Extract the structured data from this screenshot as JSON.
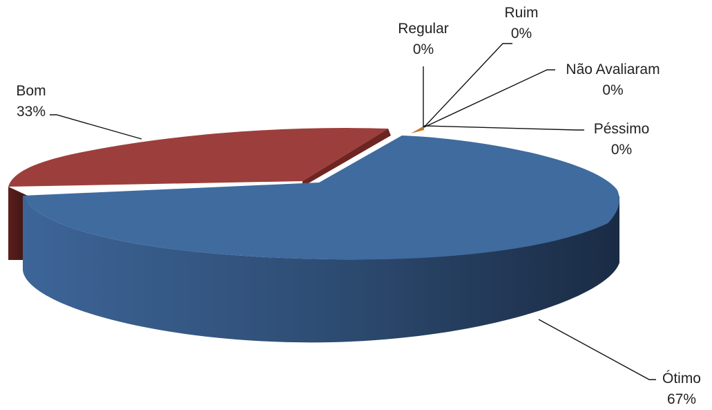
{
  "chart_data": {
    "type": "pie",
    "three_d": true,
    "legend": "none",
    "slices": [
      {
        "label": "Ótimo",
        "value_label": "67%",
        "value": 67,
        "color": "#3f6b9f"
      },
      {
        "label": "Bom",
        "value_label": "33%",
        "value": 33,
        "color": "#9c3f3c"
      },
      {
        "label": "Regular",
        "value_label": "0%",
        "value": 0,
        "color": "#c0782f"
      },
      {
        "label": "Ruim",
        "value_label": "0%",
        "value": 0,
        "color": "#8a9a3a"
      },
      {
        "label": "Não Avaliaram",
        "value_label": "0%",
        "value": 0,
        "color": "#6b4e8a"
      },
      {
        "label": "Péssimo",
        "value_label": "0%",
        "value": 0,
        "color": "#3a8fa3"
      }
    ]
  }
}
